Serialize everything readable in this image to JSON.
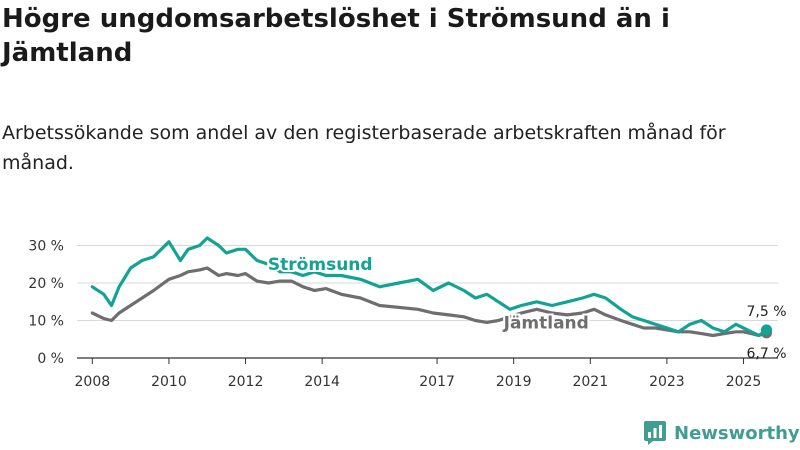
{
  "title": "Högre ungdomsarbetslöshet i Strömsund än i Jämtland",
  "subtitle": "Arbetssökande som andel av den registerbaserade arbetskraften månad för månad.",
  "brand": {
    "name": "Newsworthy",
    "color": "#3f9d91",
    "icon": "newsworthy-chart-logo-icon"
  },
  "chart_data": {
    "type": "line",
    "x_range": [
      2007.6,
      2025.9
    ],
    "ylim": [
      0,
      32
    ],
    "yticks": [
      0,
      10,
      20,
      30
    ],
    "ytick_labels": [
      "0 %",
      "10 %",
      "20 %",
      "30 %"
    ],
    "xticks": [
      2008,
      2010,
      2012,
      2014,
      2017,
      2019,
      2021,
      2023,
      2025
    ],
    "xtick_labels": [
      "2008",
      "2010",
      "2012",
      "2014",
      "2017",
      "2019",
      "2021",
      "2023",
      "2025"
    ],
    "grid": true,
    "series": [
      {
        "name": "Strömsund",
        "color": "#13a394",
        "end_label": "7,5 %",
        "x": [
          2008.0,
          2008.3,
          2008.5,
          2008.7,
          2009.0,
          2009.3,
          2009.6,
          2010.0,
          2010.3,
          2010.5,
          2010.8,
          2011.0,
          2011.3,
          2011.5,
          2011.8,
          2012.0,
          2012.3,
          2012.6,
          2012.9,
          2013.2,
          2013.5,
          2013.8,
          2014.1,
          2014.5,
          2015.0,
          2015.5,
          2016.0,
          2016.5,
          2016.9,
          2017.3,
          2017.7,
          2018.0,
          2018.3,
          2018.6,
          2018.9,
          2019.2,
          2019.6,
          2020.0,
          2020.4,
          2020.8,
          2021.1,
          2021.4,
          2021.8,
          2022.1,
          2022.4,
          2022.7,
          2023.0,
          2023.3,
          2023.6,
          2023.9,
          2024.2,
          2024.5,
          2024.8,
          2025.0,
          2025.2,
          2025.4,
          2025.6
        ],
        "values": [
          19,
          17,
          14,
          19,
          24,
          26,
          27,
          31,
          26,
          29,
          30,
          32,
          30,
          28,
          29,
          29,
          26,
          25,
          23,
          23,
          22,
          23,
          22,
          22,
          21,
          19,
          20,
          21,
          18,
          20,
          18,
          16,
          17,
          15,
          13,
          14,
          15,
          14,
          15,
          16,
          17,
          16,
          13,
          11,
          10,
          9,
          8,
          7,
          9,
          10,
          8,
          7,
          9,
          8,
          7,
          6,
          7.5
        ]
      },
      {
        "name": "Jämtland",
        "color": "#6e6e6e",
        "end_label": "6,7 %",
        "x": [
          2008.0,
          2008.3,
          2008.5,
          2008.7,
          2009.0,
          2009.3,
          2009.6,
          2010.0,
          2010.3,
          2010.5,
          2010.8,
          2011.0,
          2011.3,
          2011.5,
          2011.8,
          2012.0,
          2012.3,
          2012.6,
          2012.9,
          2013.2,
          2013.5,
          2013.8,
          2014.1,
          2014.5,
          2015.0,
          2015.5,
          2016.0,
          2016.5,
          2016.9,
          2017.3,
          2017.7,
          2018.0,
          2018.3,
          2018.6,
          2018.9,
          2019.2,
          2019.6,
          2020.0,
          2020.4,
          2020.8,
          2021.1,
          2021.4,
          2021.8,
          2022.1,
          2022.4,
          2022.7,
          2023.0,
          2023.3,
          2023.6,
          2023.9,
          2024.2,
          2024.5,
          2024.8,
          2025.0,
          2025.2,
          2025.4,
          2025.6
        ],
        "values": [
          12,
          10.5,
          10,
          12,
          14,
          16,
          18,
          21,
          22,
          23,
          23.5,
          24,
          22,
          22.5,
          22,
          22.5,
          20.5,
          20,
          20.5,
          20.5,
          19,
          18,
          18.5,
          17,
          16,
          14,
          13.5,
          13,
          12,
          11.5,
          11,
          10,
          9.5,
          10,
          11,
          12,
          13,
          12,
          11.5,
          12,
          13,
          11.5,
          10,
          9,
          8,
          8,
          7.5,
          7,
          7,
          6.5,
          6,
          6.5,
          7,
          7,
          6.5,
          6,
          6.7
        ]
      }
    ]
  }
}
